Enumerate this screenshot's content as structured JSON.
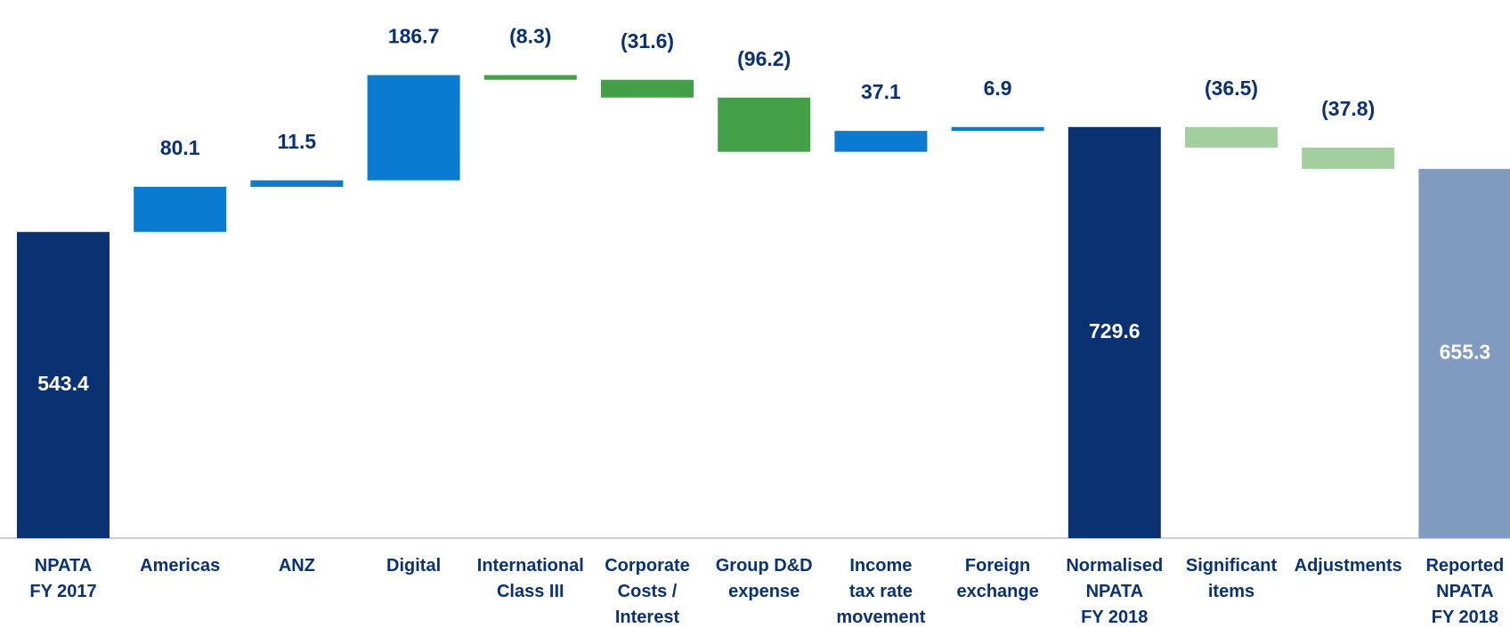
{
  "chart_data": {
    "type": "waterfall",
    "categories": [
      "NPATA\nFY 2017",
      "Americas",
      "ANZ",
      "Digital",
      "International\nClass III",
      "Corporate\nCosts /\nInterest",
      "Group D&D\nexpense",
      "Income\ntax rate\nmovement",
      "Foreign\nexchange",
      "Normalised\nNPATA\nFY 2018",
      "Significant\nitems",
      "Adjustments",
      "Reported\nNPATA\nFY 2018"
    ],
    "values": [
      543.4,
      80.1,
      11.5,
      186.7,
      -8.3,
      -31.6,
      -96.2,
      37.1,
      6.9,
      729.6,
      -36.5,
      -37.8,
      655.3
    ],
    "value_labels": [
      "543.4",
      "80.1",
      "11.5",
      "186.7",
      "(8.3)",
      "(31.6)",
      "(96.2)",
      "37.1",
      "6.9",
      "729.6",
      "(36.5)",
      "(37.8)",
      "655.3"
    ],
    "totals": [
      0,
      9,
      12
    ],
    "colors": [
      "#0a3273",
      "#0a7bd1",
      "#0a7bd1",
      "#0a7bd1",
      "#43a047",
      "#43a047",
      "#43a047",
      "#0a7bd1",
      "#0a7bd1",
      "#0a3273",
      "#a3cf9f",
      "#a3cf9f",
      "#809bbf"
    ],
    "ylim": [
      0,
      955
    ]
  }
}
